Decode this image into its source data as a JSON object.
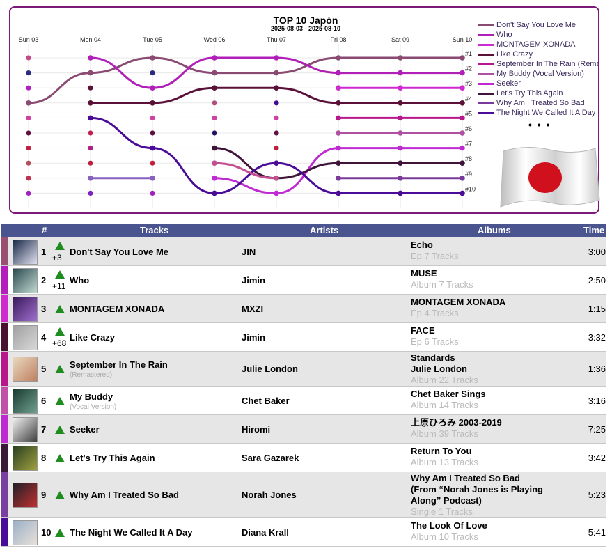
{
  "chart_data": {
    "type": "bump",
    "title": "TOP 10 Japón",
    "subtitle": "2025-08-03 - 2025-08-10",
    "x": [
      "Sun 03",
      "Mon 04",
      "Tue 05",
      "Wed 06",
      "Thu 07",
      "Fri 08",
      "Sat 09",
      "Sun 10"
    ],
    "rank_labels": [
      "#1",
      "#2",
      "#3",
      "#4",
      "#5",
      "#6",
      "#7",
      "#8",
      "#9",
      "#10"
    ],
    "ylim": [
      1,
      11
    ],
    "series": [
      {
        "name": "Don't Say You Love Me",
        "color": "#8a4a72",
        "ranks": [
          4,
          2,
          1,
          2,
          2,
          1,
          1,
          1
        ]
      },
      {
        "name": "Who",
        "color": "#b020b8",
        "ranks": [
          null,
          1,
          3,
          1,
          1,
          2,
          2,
          2
        ]
      },
      {
        "name": "MONTAGEM XONADA",
        "color": "#cf2ad0",
        "ranks": [
          null,
          null,
          null,
          null,
          null,
          3,
          3,
          3
        ]
      },
      {
        "name": "Like Crazy",
        "color": "#5a1038",
        "ranks": [
          null,
          4,
          4,
          3,
          3,
          4,
          4,
          4
        ]
      },
      {
        "name": "September In The Rain (Remastered)",
        "color": "#b8178c",
        "ranks": [
          null,
          null,
          null,
          null,
          null,
          5,
          5,
          5
        ]
      },
      {
        "name": "My Buddy (Vocal Version)",
        "color": "#b050a0",
        "ranks": [
          null,
          null,
          null,
          null,
          null,
          6,
          6,
          6
        ]
      },
      {
        "name": "Seeker",
        "color": "#c02ad2",
        "ranks": [
          null,
          null,
          null,
          9,
          10,
          7,
          7,
          7
        ]
      },
      {
        "name": "Let's Try This Again",
        "color": "#40143a",
        "ranks": [
          null,
          null,
          null,
          7,
          9,
          8,
          8,
          8
        ]
      },
      {
        "name": "Why Am I Treated So Bad",
        "color": "#7a3a9a",
        "ranks": [
          null,
          null,
          null,
          null,
          null,
          9,
          9,
          9
        ]
      },
      {
        "name": "The Night We Called It A Day",
        "color": "#4a0c98",
        "ranks": [
          null,
          5,
          7,
          10,
          8,
          10,
          10,
          10
        ]
      },
      {
        "name": "",
        "color": "#8860c0",
        "ranks": [
          null,
          9,
          9,
          null,
          null,
          null,
          null,
          null
        ]
      },
      {
        "name": "",
        "color": "#c25090",
        "ranks": [
          null,
          null,
          null,
          8,
          9,
          null,
          null,
          null
        ]
      }
    ],
    "dot_colors": [
      [
        "#c04a8a",
        "#2a2a80",
        "#b020c0",
        "#8a4a72",
        "#d040a0",
        "#601040",
        "#c02040",
        "#b05060",
        "#c03050",
        "#a020c0"
      ],
      [
        "#c04a8a",
        "#b020c0",
        "#5a1038",
        "#b05080",
        "#5a1038",
        "#c02050",
        "#b02080",
        "#c02040",
        "#a030c0",
        "#8020c0"
      ],
      [
        "#c04a8a",
        "#2a2a80",
        "#b020c0",
        "#5a1038",
        "#d040a0",
        "#601040",
        "#b05060",
        "#c02040",
        "#c03050",
        "#a020c0"
      ],
      [
        "#c04a8a",
        "#b020c0",
        "#5a1038",
        "#b05080",
        "#d040a0",
        "#2a1060",
        "#b02080",
        "#c02040",
        "#c03050",
        "#a020c0"
      ],
      [
        "#c04a8a",
        "#b020c0",
        "#5a1038",
        "#400c98",
        "#d040a0",
        "#601040",
        "#c02040",
        "#b05060",
        "#c03050",
        "#a020c0"
      ]
    ],
    "legend_more": "• • •",
    "legend_position": "right"
  },
  "table": {
    "headers": {
      "rank": "#",
      "tracks": "Tracks",
      "artists": "Artists",
      "albums": "Albums",
      "time": "Time"
    },
    "rows": [
      {
        "rank": "1",
        "change": "+3",
        "track": "Don't Say You Love Me",
        "track_sub": "",
        "artist": "JIN",
        "album": "Echo",
        "album_sub": "Ep 7 Tracks",
        "time": "3:00",
        "color": "#9a5070",
        "cover": [
          "#1a2a48",
          "#e0e0f0"
        ],
        "height": 41
      },
      {
        "rank": "2",
        "change": "+11",
        "track": "Who",
        "track_sub": "",
        "artist": "Jimin",
        "album": "MUSE",
        "album_sub": "Album 7 Tracks",
        "time": "2:50",
        "color": "#b41cbc",
        "cover": [
          "#2c4a50",
          "#c0d8d0"
        ],
        "height": 41
      },
      {
        "rank": "3",
        "change": "",
        "track": "MONTAGEM XONADA",
        "track_sub": "",
        "artist": "MXZI",
        "album": "MONTAGEM XONADA",
        "album_sub": "Ep 4 Tracks",
        "time": "1:15",
        "color": "#cf2ad0",
        "cover": [
          "#3a1a5a",
          "#a070d0"
        ],
        "height": 41
      },
      {
        "rank": "4",
        "change": "+68",
        "track": "Like Crazy",
        "track_sub": "",
        "artist": "Jimin",
        "album": "FACE",
        "album_sub": "Ep 6 Tracks",
        "time": "3:32",
        "color": "#4a1030",
        "cover": [
          "#a0a0a0",
          "#d8d8d8"
        ],
        "height": 41
      },
      {
        "rank": "5",
        "change": "",
        "track": "September In The Rain",
        "track_sub": "(Remastered)",
        "artist": "Julie London",
        "album": "Standards\nJulie London",
        "album_sub": "Album 22 Tracks",
        "time": "1:36",
        "color": "#b8178c",
        "cover": [
          "#e8d8c0",
          "#c08060"
        ],
        "height": 50
      },
      {
        "rank": "6",
        "change": "",
        "track": "My Buddy",
        "track_sub": "(Vocal Version)",
        "artist": "Chet Baker",
        "album": "Chet Baker Sings",
        "album_sub": "Album 14 Tracks",
        "time": "3:16",
        "color": "#c050a8",
        "cover": [
          "#1a3a30",
          "#70a090"
        ],
        "height": 41
      },
      {
        "rank": "7",
        "change": "",
        "track": "Seeker",
        "track_sub": "",
        "artist": "Hiromi",
        "album": "上原ひろみ 2003-2019",
        "album_sub": "Album 39 Tracks",
        "time": "7:25",
        "color": "#c02ad2",
        "cover": [
          "#f0f0f0",
          "#404040"
        ],
        "height": 41
      },
      {
        "rank": "8",
        "change": "",
        "track": "Let's Try This Again",
        "track_sub": "",
        "artist": "Sara Gazarek",
        "album": "Return To You",
        "album_sub": "Album 13 Tracks",
        "time": "3:42",
        "color": "#3a1838",
        "cover": [
          "#2a4020",
          "#a0a040"
        ],
        "height": 41
      },
      {
        "rank": "9",
        "change": "",
        "track": "Why Am I Treated So Bad",
        "track_sub": "",
        "artist": "Norah Jones",
        "album": "Why Am I Treated So Bad\n(From “Norah Jones is Playing Along” Podcast)",
        "album_sub": "Single 1 Tracks",
        "time": "5:23",
        "color": "#7a40a0",
        "cover": [
          "#202028",
          "#c03030"
        ],
        "height": 66
      },
      {
        "rank": "10",
        "change": "",
        "track": "The Night We Called It A Day",
        "track_sub": "",
        "artist": "Diana Krall",
        "album": "The Look Of Love",
        "album_sub": "Album 10 Tracks",
        "time": "5:41",
        "color": "#4a0c98",
        "cover": [
          "#9ab0c8",
          "#e8e0d8"
        ],
        "height": 41
      }
    ]
  }
}
